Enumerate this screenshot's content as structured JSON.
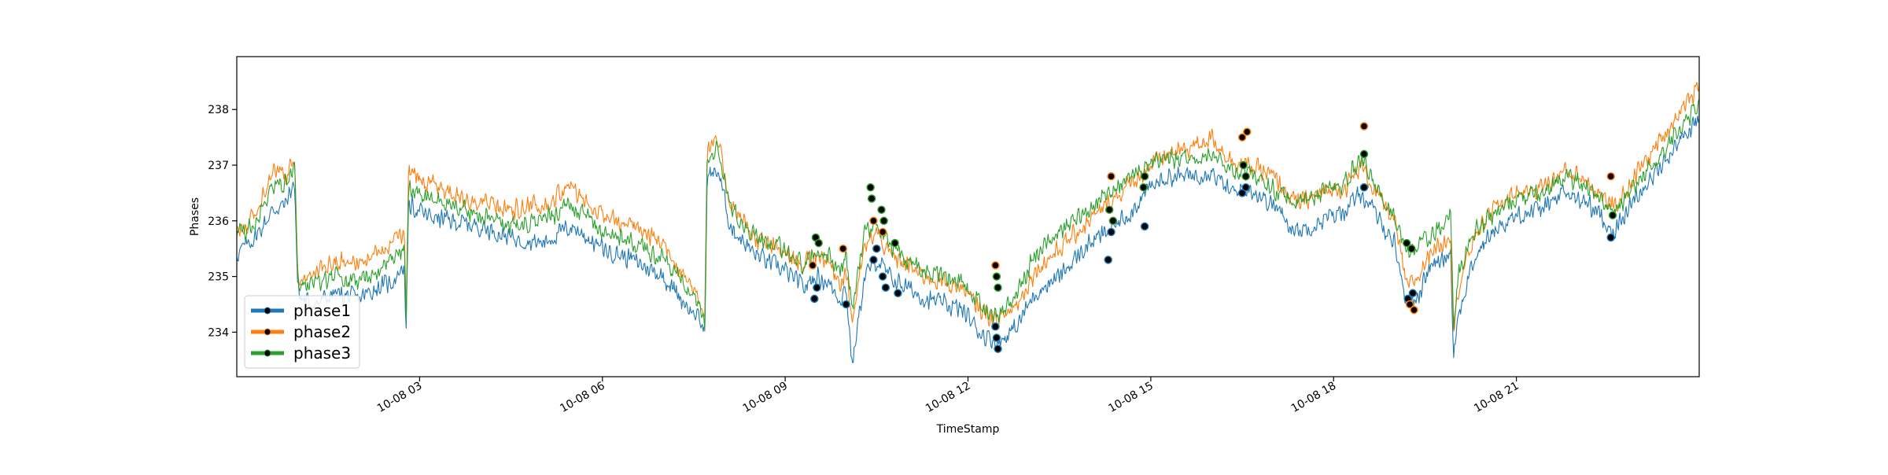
{
  "chart_data": {
    "type": "line",
    "title": "",
    "xlabel": "TimeStamp",
    "ylabel": "Phases",
    "x_range": [
      "10-08 00:00",
      "10-08 24:00"
    ],
    "ylim": [
      233.2,
      238.95
    ],
    "y_ticks": [
      234,
      235,
      236,
      237,
      238
    ],
    "y_tick_labels": [
      "234",
      "235",
      "236",
      "237",
      "238"
    ],
    "x_ticks": [
      3,
      6,
      9,
      12,
      15,
      18,
      21
    ],
    "x_tick_labels": [
      "10-08 03",
      "10-08 06",
      "10-08 09",
      "10-08 12",
      "10-08 15",
      "10-08 18",
      "10-08 21"
    ],
    "x_unit": "hours of 10-08",
    "grid": false,
    "legend": "lower-left",
    "series": [
      {
        "name": "phase1",
        "color": "#1f77b4",
        "x": [
          0,
          0.3,
          0.6,
          0.8,
          0.95,
          1.0,
          1.05,
          1.3,
          1.6,
          2.0,
          2.3,
          2.55,
          2.75,
          2.78,
          2.82,
          3.1,
          3.5,
          4.0,
          4.5,
          5.0,
          5.5,
          6.0,
          6.5,
          7.0,
          7.3,
          7.6,
          7.68,
          7.72,
          7.9,
          8.1,
          8.5,
          9.0,
          9.3,
          9.5,
          9.7,
          9.9,
          10.0,
          10.1,
          10.3,
          10.5,
          10.7,
          11.0,
          11.3,
          11.6,
          11.9,
          12.2,
          12.5,
          12.8,
          13.1,
          13.5,
          14.0,
          14.3,
          14.7,
          15.0,
          15.3,
          15.6,
          16.0,
          16.3,
          16.6,
          17.0,
          17.4,
          17.8,
          18.2,
          18.45,
          18.7,
          19.0,
          19.2,
          19.4,
          19.6,
          19.8,
          19.92,
          19.97,
          20.05,
          20.3,
          20.6,
          21.0,
          21.4,
          21.8,
          22.2,
          22.6,
          23.0,
          23.4,
          23.7,
          24.0
        ],
        "values": [
          235.4,
          235.7,
          236.2,
          236.3,
          236.7,
          234.8,
          234.6,
          234.5,
          234.7,
          234.6,
          234.8,
          234.9,
          235.2,
          234.0,
          236.3,
          236.1,
          236.0,
          235.9,
          235.7,
          235.6,
          235.9,
          235.5,
          235.3,
          235.0,
          234.6,
          234.2,
          234.0,
          236.8,
          236.9,
          235.9,
          235.4,
          235.1,
          234.8,
          235.0,
          234.9,
          234.6,
          234.8,
          233.4,
          235.0,
          235.3,
          235.0,
          234.8,
          234.6,
          234.5,
          234.4,
          234.0,
          233.8,
          234.1,
          234.7,
          235.0,
          235.6,
          235.8,
          236.2,
          236.6,
          236.8,
          236.8,
          236.9,
          236.5,
          236.6,
          236.3,
          235.8,
          236.0,
          236.2,
          236.5,
          236.1,
          235.6,
          234.5,
          234.7,
          235.2,
          235.3,
          235.5,
          233.6,
          234.3,
          235.3,
          235.8,
          236.1,
          236.2,
          236.5,
          236.3,
          235.8,
          236.5,
          237.0,
          237.5,
          237.8
        ]
      },
      {
        "name": "phase2",
        "color": "#ff7f0e",
        "x": [
          0,
          0.3,
          0.6,
          0.8,
          0.95,
          1.0,
          1.05,
          1.3,
          1.6,
          2.0,
          2.3,
          2.55,
          2.75,
          2.78,
          2.82,
          3.1,
          3.5,
          4.0,
          4.5,
          5.0,
          5.5,
          6.0,
          6.5,
          7.0,
          7.3,
          7.6,
          7.68,
          7.72,
          7.9,
          8.1,
          8.5,
          9.0,
          9.3,
          9.5,
          9.7,
          9.9,
          10.0,
          10.1,
          10.3,
          10.5,
          10.7,
          11.0,
          11.3,
          11.6,
          11.9,
          12.2,
          12.5,
          12.8,
          13.1,
          13.5,
          14.0,
          14.3,
          14.7,
          15.0,
          15.3,
          15.6,
          16.0,
          16.3,
          16.6,
          17.0,
          17.4,
          17.8,
          18.2,
          18.45,
          18.7,
          19.0,
          19.2,
          19.4,
          19.6,
          19.8,
          19.92,
          19.97,
          20.05,
          20.3,
          20.6,
          21.0,
          21.4,
          21.8,
          22.2,
          22.6,
          23.0,
          23.4,
          23.7,
          24.0
        ],
        "values": [
          235.8,
          236.1,
          236.9,
          236.8,
          237.1,
          235.1,
          234.9,
          235.1,
          235.3,
          235.2,
          235.4,
          235.6,
          235.8,
          234.3,
          236.9,
          236.7,
          236.5,
          236.3,
          236.2,
          236.3,
          236.6,
          236.1,
          235.9,
          235.6,
          235.1,
          234.6,
          234.3,
          237.3,
          237.4,
          236.3,
          235.7,
          235.4,
          235.2,
          235.4,
          235.3,
          234.9,
          235.1,
          234.2,
          235.5,
          235.8,
          235.4,
          235.2,
          235.0,
          234.9,
          234.8,
          234.4,
          234.2,
          234.5,
          235.1,
          235.5,
          236.0,
          236.3,
          236.7,
          237.0,
          237.2,
          237.3,
          237.5,
          237.1,
          237.0,
          236.8,
          236.3,
          236.5,
          236.6,
          237.0,
          236.5,
          236.0,
          234.8,
          235.0,
          235.5,
          235.6,
          235.8,
          234.0,
          234.8,
          235.7,
          236.2,
          236.5,
          236.6,
          236.9,
          236.7,
          236.2,
          236.9,
          237.5,
          238.0,
          238.4
        ]
      },
      {
        "name": "phase3",
        "color": "#2ca02c",
        "x": [
          0,
          0.3,
          0.6,
          0.8,
          0.95,
          1.0,
          1.05,
          1.3,
          1.6,
          2.0,
          2.3,
          2.55,
          2.75,
          2.78,
          2.82,
          3.1,
          3.5,
          4.0,
          4.5,
          5.0,
          5.5,
          6.0,
          6.5,
          7.0,
          7.3,
          7.6,
          7.68,
          7.72,
          7.9,
          8.1,
          8.5,
          9.0,
          9.3,
          9.5,
          9.7,
          9.9,
          10.0,
          10.1,
          10.3,
          10.5,
          10.7,
          11.0,
          11.3,
          11.6,
          11.9,
          12.2,
          12.5,
          12.8,
          13.1,
          13.5,
          14.0,
          14.3,
          14.7,
          15.0,
          15.3,
          15.6,
          16.0,
          16.3,
          16.6,
          17.0,
          17.4,
          17.8,
          18.2,
          18.45,
          18.7,
          19.0,
          19.2,
          19.4,
          19.6,
          19.8,
          19.92,
          19.97,
          20.05,
          20.3,
          20.6,
          21.0,
          21.4,
          21.8,
          22.2,
          22.6,
          23.0,
          23.4,
          23.7,
          24.0
        ],
        "values": [
          235.7,
          236.0,
          236.6,
          236.7,
          237.0,
          235.0,
          234.8,
          234.9,
          235.0,
          234.9,
          235.1,
          235.3,
          235.5,
          234.1,
          236.6,
          236.4,
          236.3,
          236.1,
          235.9,
          236.0,
          236.3,
          235.8,
          235.6,
          235.3,
          234.9,
          234.4,
          234.1,
          237.1,
          237.3,
          236.2,
          235.7,
          235.5,
          235.2,
          235.5,
          235.4,
          235.1,
          235.4,
          234.4,
          235.8,
          236.0,
          235.6,
          235.3,
          235.1,
          235.0,
          234.9,
          234.5,
          234.3,
          234.7,
          235.4,
          235.8,
          236.2,
          236.5,
          236.8,
          237.0,
          237.1,
          237.1,
          237.2,
          236.9,
          236.9,
          236.6,
          236.3,
          236.5,
          236.7,
          237.1,
          236.6,
          236.1,
          235.4,
          235.6,
          235.7,
          235.9,
          236.2,
          234.1,
          235.0,
          235.8,
          236.1,
          236.4,
          236.5,
          236.8,
          236.6,
          236.1,
          236.7,
          237.2,
          237.7,
          238.1
        ]
      }
    ],
    "markers": {
      "fill": "#000000",
      "points": [
        {
          "series": "phase1",
          "x": 9.48,
          "y": 234.6
        },
        {
          "series": "phase1",
          "x": 9.52,
          "y": 234.8
        },
        {
          "series": "phase2",
          "x": 9.45,
          "y": 235.2
        },
        {
          "series": "phase3",
          "x": 9.5,
          "y": 235.7
        },
        {
          "series": "phase3",
          "x": 9.55,
          "y": 235.6
        },
        {
          "series": "phase2",
          "x": 9.95,
          "y": 235.5
        },
        {
          "series": "phase1",
          "x": 10.0,
          "y": 234.5
        },
        {
          "series": "phase3",
          "x": 10.4,
          "y": 236.6
        },
        {
          "series": "phase3",
          "x": 10.42,
          "y": 236.4
        },
        {
          "series": "phase2",
          "x": 10.45,
          "y": 236.0
        },
        {
          "series": "phase1",
          "x": 10.45,
          "y": 235.3
        },
        {
          "series": "phase1",
          "x": 10.5,
          "y": 235.5
        },
        {
          "series": "phase3",
          "x": 10.58,
          "y": 236.2
        },
        {
          "series": "phase3",
          "x": 10.62,
          "y": 236.0
        },
        {
          "series": "phase2",
          "x": 10.6,
          "y": 235.8
        },
        {
          "series": "phase1",
          "x": 10.6,
          "y": 235.0
        },
        {
          "series": "phase1",
          "x": 10.65,
          "y": 234.8
        },
        {
          "series": "phase3",
          "x": 10.8,
          "y": 235.6
        },
        {
          "series": "phase1",
          "x": 10.85,
          "y": 234.7
        },
        {
          "series": "phase2",
          "x": 12.45,
          "y": 235.2
        },
        {
          "series": "phase3",
          "x": 12.47,
          "y": 235.0
        },
        {
          "series": "phase3",
          "x": 12.49,
          "y": 234.8
        },
        {
          "series": "phase1",
          "x": 12.45,
          "y": 234.1
        },
        {
          "series": "phase1",
          "x": 12.47,
          "y": 233.9
        },
        {
          "series": "phase1",
          "x": 12.49,
          "y": 233.7
        },
        {
          "series": "phase2",
          "x": 14.35,
          "y": 236.8
        },
        {
          "series": "phase3",
          "x": 14.32,
          "y": 236.2
        },
        {
          "series": "phase3",
          "x": 14.38,
          "y": 236.0
        },
        {
          "series": "phase1",
          "x": 14.35,
          "y": 235.8
        },
        {
          "series": "phase1",
          "x": 14.3,
          "y": 235.3
        },
        {
          "series": "phase3",
          "x": 14.9,
          "y": 236.8
        },
        {
          "series": "phase3",
          "x": 14.88,
          "y": 236.6
        },
        {
          "series": "phase1",
          "x": 14.9,
          "y": 235.9
        },
        {
          "series": "phase2",
          "x": 16.5,
          "y": 237.5
        },
        {
          "series": "phase2",
          "x": 16.58,
          "y": 237.6
        },
        {
          "series": "phase3",
          "x": 16.52,
          "y": 237.0
        },
        {
          "series": "phase3",
          "x": 16.56,
          "y": 236.8
        },
        {
          "series": "phase1",
          "x": 16.5,
          "y": 236.5
        },
        {
          "series": "phase1",
          "x": 16.56,
          "y": 236.6
        },
        {
          "series": "phase2",
          "x": 18.5,
          "y": 237.7
        },
        {
          "series": "phase3",
          "x": 18.5,
          "y": 237.2
        },
        {
          "series": "phase1",
          "x": 18.5,
          "y": 236.6
        },
        {
          "series": "phase3",
          "x": 19.2,
          "y": 235.6
        },
        {
          "series": "phase3",
          "x": 19.28,
          "y": 235.5
        },
        {
          "series": "phase1",
          "x": 19.22,
          "y": 234.6
        },
        {
          "series": "phase1",
          "x": 19.3,
          "y": 234.7
        },
        {
          "series": "phase2",
          "x": 19.25,
          "y": 234.5
        },
        {
          "series": "phase2",
          "x": 19.32,
          "y": 234.4
        },
        {
          "series": "phase2",
          "x": 22.55,
          "y": 236.8
        },
        {
          "series": "phase3",
          "x": 22.58,
          "y": 236.1
        },
        {
          "series": "phase1",
          "x": 22.55,
          "y": 235.7
        }
      ]
    }
  }
}
